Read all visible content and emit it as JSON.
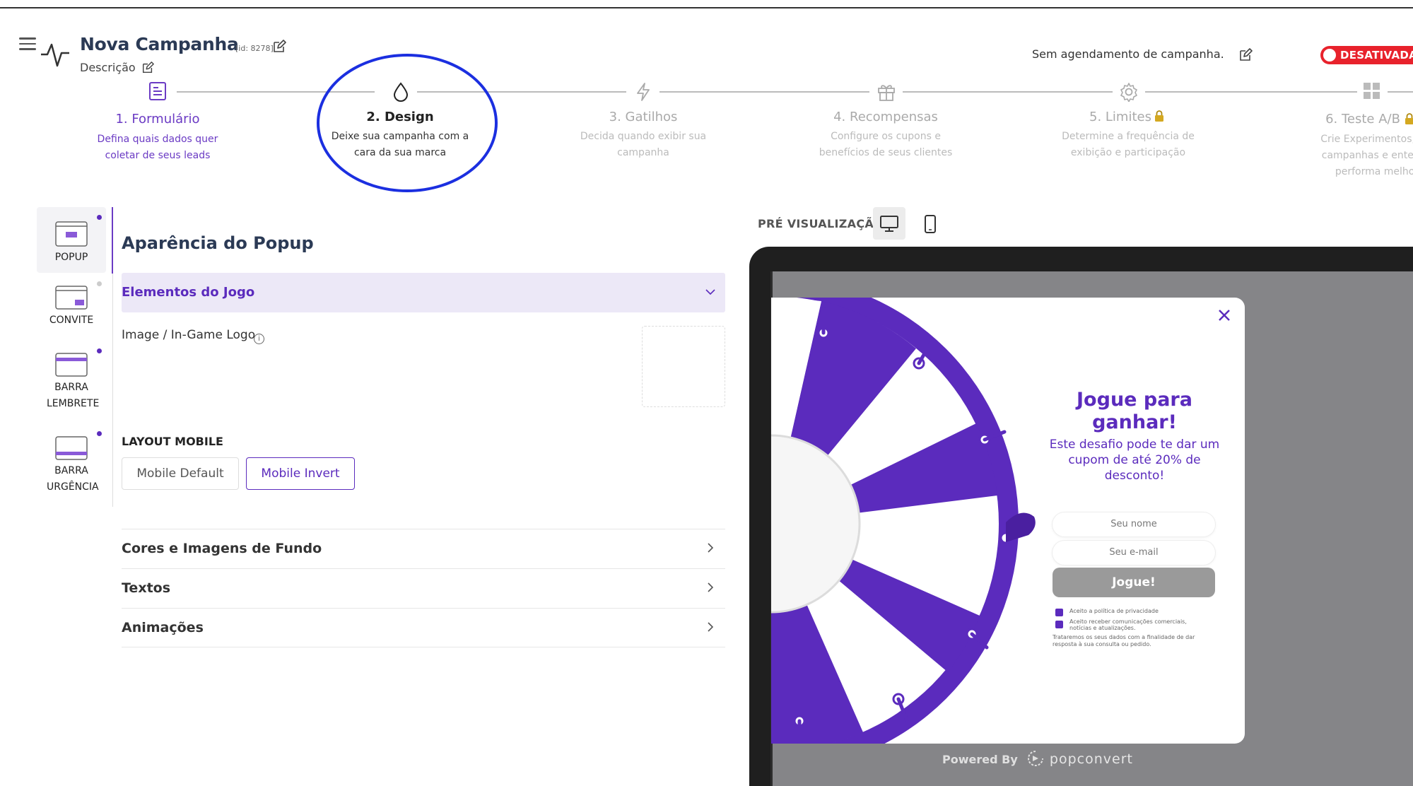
{
  "header": {
    "campaign_title": "Nova Campanha",
    "campaign_id": "[id: 8278]",
    "description": "Descrição",
    "schedule_text": "Sem agendamento de campanha.",
    "status": "DESATIVADA"
  },
  "steps": [
    {
      "title": "1. Formulário",
      "desc": "Defina quais dados quer coletar de seus leads"
    },
    {
      "title": "2. Design",
      "desc": "Deixe sua campanha com a cara da sua marca"
    },
    {
      "title": "3. Gatilhos",
      "desc": "Decida quando exibir sua campanha"
    },
    {
      "title": "4. Recompensas",
      "desc": "Configure os cupons e benefícios de seus clientes"
    },
    {
      "title": "5. Limites",
      "desc": "Determine a frequência de exibição e participação"
    },
    {
      "title": "6. Teste A/B",
      "desc": "Crie Experimentos, adi campanhas e entenda performa melhor"
    }
  ],
  "sidebar": {
    "items": [
      {
        "label": "POPUP"
      },
      {
        "label": "CONVITE"
      },
      {
        "label": "BARRA LEMBRETE"
      },
      {
        "label": "BARRA URGÊNCIA"
      }
    ]
  },
  "panel": {
    "title": "Aparência do Popup",
    "open_section": "Elementos do Jogo",
    "image_label": "Image / In-Game Logo",
    "layout_label": "LAYOUT MOBILE",
    "layout_default": "Mobile Default",
    "layout_invert": "Mobile Invert",
    "sections": [
      "Cores e Imagens de Fundo",
      "Textos",
      "Animações"
    ]
  },
  "preview": {
    "label": "PRÉ VISUALIZAÇÃO",
    "popup_title": "Jogue para ganhar!",
    "popup_subtitle": "Este desafio pode te dar um cupom de até 20% de desconto!",
    "name_placeholder": "Seu nome",
    "email_placeholder": "Seu e-mail",
    "button": "Jogue!",
    "check1": "Aceito a política de privacidade",
    "check2": "Aceito receber comunicações comerciais, notícias e atualizações.",
    "legal": "Trataremos os seus dados com a finalidade de dar resposta à sua consulta ou pedido.",
    "powered_by": "Powered By",
    "brand": "popconvert"
  },
  "colors": {
    "accent": "#5b2bbd",
    "status": "#e8222c",
    "highlight_ring": "#1b2fe0"
  },
  "icons": [
    "menu-icon",
    "pulse-icon",
    "edit-icon",
    "form-icon",
    "drop-icon",
    "bolt-icon",
    "gift-icon",
    "gear-icon",
    "lock-icon",
    "grid-icon",
    "chevron-down-icon",
    "chevron-right-icon",
    "info-icon",
    "desktop-icon",
    "mobile-icon",
    "close-icon"
  ]
}
